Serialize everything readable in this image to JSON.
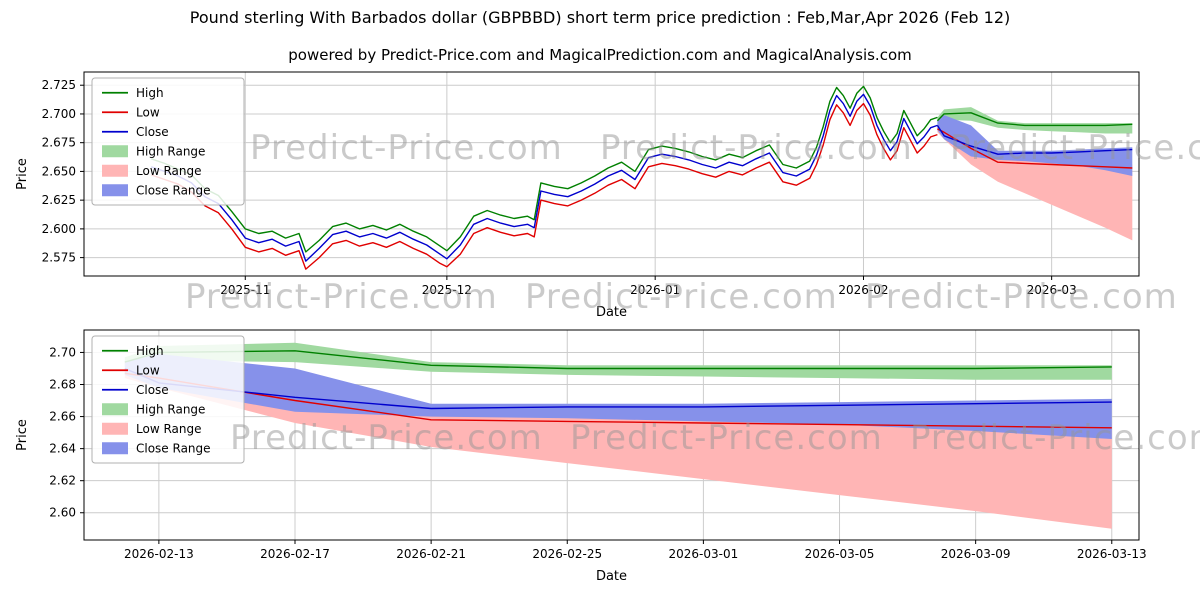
{
  "figure": {
    "title": "Pound sterling With Barbados dollar (GBPBBD) short term price prediction : Feb,Mar,Apr 2026 (Feb 12)",
    "subtitle": "powered by Predict-Price.com and MagicalPrediction.com and MagicalAnalysis.com",
    "watermark_text": "Predict-Price.com",
    "colors": {
      "high": "#008000",
      "low": "#e00000",
      "close": "#0000cd",
      "high_range": "#a0d9a0",
      "low_range": "#ffb5b5",
      "close_range": "#8691ea",
      "grid": "#cccccc",
      "axis": "#000000",
      "watermark": "#969696"
    }
  },
  "chart_data": [
    {
      "type": "line",
      "name": "price-history-and-forecast-chart",
      "xlabel": "Date",
      "ylabel": "Price",
      "ylim": [
        2.559,
        2.7365
      ],
      "yticks": [
        2.575,
        2.6,
        2.625,
        2.65,
        2.675,
        2.7,
        2.725
      ],
      "ytick_decimals": 3,
      "xlim": [
        0,
        157
      ],
      "xticks": [
        {
          "pos": 24,
          "label": "2025-11"
        },
        {
          "pos": 54,
          "label": "2025-12"
        },
        {
          "pos": 85,
          "label": "2026-01"
        },
        {
          "pos": 116,
          "label": "2026-02"
        },
        {
          "pos": 144,
          "label": "2026-03"
        }
      ],
      "legend": [
        {
          "label": "High",
          "type": "line",
          "color_key": "high"
        },
        {
          "label": "Low",
          "type": "line",
          "color_key": "low"
        },
        {
          "label": "Close",
          "type": "line",
          "color_key": "close"
        },
        {
          "label": "High Range",
          "type": "patch",
          "color_key": "high_range"
        },
        {
          "label": "Low Range",
          "type": "patch",
          "color_key": "low_range"
        },
        {
          "label": "Close Range",
          "type": "patch",
          "color_key": "close_range"
        }
      ],
      "historical": {
        "x": [
          10,
          12,
          14,
          16,
          18,
          20,
          22,
          24,
          26,
          28,
          30,
          32,
          33,
          35,
          37,
          39,
          41,
          43,
          45,
          47,
          49,
          51,
          53,
          54,
          56,
          58,
          60,
          62,
          64,
          66,
          67,
          68,
          70,
          72,
          74,
          76,
          78,
          80,
          82,
          84,
          86,
          88,
          90,
          92,
          94,
          96,
          98,
          100,
          102,
          104,
          106,
          108,
          109,
          110,
          111,
          112,
          113,
          114,
          115,
          116,
          117,
          118,
          119,
          120,
          121,
          122,
          123,
          124,
          125,
          126,
          127
        ],
        "high": [
          2.661,
          2.657,
          2.652,
          2.647,
          2.635,
          2.629,
          2.615,
          2.6,
          2.596,
          2.598,
          2.592,
          2.596,
          2.58,
          2.59,
          2.602,
          2.605,
          2.6,
          2.603,
          2.599,
          2.604,
          2.598,
          2.593,
          2.585,
          2.581,
          2.593,
          2.611,
          2.616,
          2.612,
          2.609,
          2.611,
          2.608,
          2.64,
          2.637,
          2.635,
          2.64,
          2.646,
          2.653,
          2.658,
          2.65,
          2.669,
          2.672,
          2.67,
          2.667,
          2.663,
          2.66,
          2.665,
          2.662,
          2.668,
          2.673,
          2.656,
          2.653,
          2.659,
          2.671,
          2.689,
          2.711,
          2.723,
          2.716,
          2.705,
          2.718,
          2.724,
          2.714,
          2.697,
          2.685,
          2.675,
          2.683,
          2.703,
          2.692,
          2.681,
          2.687,
          2.695,
          2.697
        ],
        "low": [
          2.647,
          2.643,
          2.639,
          2.632,
          2.62,
          2.614,
          2.6,
          2.584,
          2.58,
          2.583,
          2.577,
          2.581,
          2.565,
          2.575,
          2.587,
          2.59,
          2.585,
          2.588,
          2.584,
          2.589,
          2.583,
          2.578,
          2.57,
          2.567,
          2.578,
          2.596,
          2.601,
          2.597,
          2.594,
          2.596,
          2.593,
          2.625,
          2.622,
          2.62,
          2.625,
          2.631,
          2.638,
          2.643,
          2.635,
          2.654,
          2.657,
          2.655,
          2.652,
          2.648,
          2.645,
          2.65,
          2.647,
          2.653,
          2.658,
          2.641,
          2.638,
          2.644,
          2.656,
          2.673,
          2.695,
          2.708,
          2.701,
          2.69,
          2.703,
          2.709,
          2.699,
          2.682,
          2.67,
          2.66,
          2.668,
          2.688,
          2.677,
          2.666,
          2.672,
          2.68,
          2.682
        ],
        "close": [
          2.654,
          2.65,
          2.646,
          2.64,
          2.628,
          2.622,
          2.608,
          2.592,
          2.588,
          2.591,
          2.585,
          2.589,
          2.572,
          2.583,
          2.595,
          2.598,
          2.593,
          2.596,
          2.592,
          2.597,
          2.591,
          2.586,
          2.578,
          2.574,
          2.586,
          2.604,
          2.609,
          2.605,
          2.602,
          2.604,
          2.601,
          2.633,
          2.63,
          2.628,
          2.633,
          2.639,
          2.646,
          2.651,
          2.643,
          2.662,
          2.665,
          2.663,
          2.66,
          2.656,
          2.653,
          2.658,
          2.655,
          2.661,
          2.666,
          2.649,
          2.646,
          2.652,
          2.664,
          2.681,
          2.703,
          2.716,
          2.709,
          2.698,
          2.711,
          2.717,
          2.707,
          2.69,
          2.678,
          2.668,
          2.676,
          2.696,
          2.685,
          2.674,
          2.68,
          2.688,
          2.69
        ]
      },
      "forecast": {
        "x": [
          127,
          128,
          132,
          136,
          140,
          144,
          148,
          152,
          156
        ],
        "high": [
          2.694,
          2.7,
          2.701,
          2.692,
          2.69,
          2.69,
          2.69,
          2.69,
          2.691
        ],
        "low": [
          2.687,
          2.684,
          2.67,
          2.658,
          2.657,
          2.656,
          2.655,
          2.654,
          2.653
        ],
        "close": [
          2.69,
          2.681,
          2.672,
          2.665,
          2.666,
          2.666,
          2.667,
          2.668,
          2.669
        ],
        "high_range": {
          "upper": [
            2.697,
            2.704,
            2.706,
            2.694,
            2.692,
            2.692,
            2.692,
            2.692,
            2.692
          ],
          "lower": [
            2.691,
            2.695,
            2.694,
            2.688,
            2.686,
            2.685,
            2.684,
            2.683,
            2.683
          ]
        },
        "close_range": {
          "upper": [
            2.694,
            2.699,
            2.69,
            2.668,
            2.668,
            2.668,
            2.669,
            2.67,
            2.671
          ],
          "lower": [
            2.686,
            2.678,
            2.663,
            2.66,
            2.659,
            2.657,
            2.655,
            2.651,
            2.646
          ]
        },
        "low_range": {
          "upper": [
            2.69,
            2.69,
            2.678,
            2.661,
            2.66,
            2.659,
            2.658,
            2.657,
            2.656
          ],
          "lower": [
            2.684,
            2.678,
            2.656,
            2.641,
            2.631,
            2.621,
            2.611,
            2.601,
            2.59
          ]
        }
      }
    },
    {
      "type": "line",
      "name": "forecast-detail-chart",
      "xlabel": "Date",
      "ylabel": "Price",
      "ylim": [
        2.583,
        2.714
      ],
      "yticks": [
        2.6,
        2.62,
        2.64,
        2.66,
        2.68,
        2.7
      ],
      "ytick_decimals": 2,
      "xlim": [
        125.8,
        156.8
      ],
      "xticks": [
        {
          "pos": 128,
          "label": "2026-02-13"
        },
        {
          "pos": 132,
          "label": "2026-02-17"
        },
        {
          "pos": 136,
          "label": "2026-02-21"
        },
        {
          "pos": 140,
          "label": "2026-02-25"
        },
        {
          "pos": 144,
          "label": "2026-03-01"
        },
        {
          "pos": 148,
          "label": "2026-03-05"
        },
        {
          "pos": 152,
          "label": "2026-03-09"
        },
        {
          "pos": 156,
          "label": "2026-03-13"
        }
      ],
      "legend": [
        {
          "label": "High",
          "type": "line",
          "color_key": "high"
        },
        {
          "label": "Low",
          "type": "line",
          "color_key": "low"
        },
        {
          "label": "Close",
          "type": "line",
          "color_key": "close"
        },
        {
          "label": "High Range",
          "type": "patch",
          "color_key": "high_range"
        },
        {
          "label": "Low Range",
          "type": "patch",
          "color_key": "low_range"
        },
        {
          "label": "Close Range",
          "type": "patch",
          "color_key": "close_range"
        }
      ],
      "forecast": {
        "x": [
          127,
          128,
          132,
          136,
          140,
          144,
          148,
          152,
          156
        ],
        "high": [
          2.694,
          2.7,
          2.701,
          2.692,
          2.69,
          2.69,
          2.69,
          2.69,
          2.691
        ],
        "low": [
          2.687,
          2.684,
          2.67,
          2.658,
          2.657,
          2.656,
          2.655,
          2.654,
          2.653
        ],
        "close": [
          2.69,
          2.681,
          2.672,
          2.665,
          2.666,
          2.666,
          2.667,
          2.668,
          2.669
        ],
        "high_range": {
          "upper": [
            2.697,
            2.704,
            2.706,
            2.694,
            2.692,
            2.692,
            2.692,
            2.692,
            2.692
          ],
          "lower": [
            2.691,
            2.695,
            2.694,
            2.688,
            2.686,
            2.685,
            2.684,
            2.683,
            2.683
          ]
        },
        "close_range": {
          "upper": [
            2.694,
            2.699,
            2.69,
            2.668,
            2.668,
            2.668,
            2.669,
            2.67,
            2.671
          ],
          "lower": [
            2.686,
            2.678,
            2.663,
            2.66,
            2.659,
            2.657,
            2.655,
            2.651,
            2.646
          ]
        },
        "low_range": {
          "upper": [
            2.69,
            2.69,
            2.678,
            2.661,
            2.66,
            2.659,
            2.658,
            2.657,
            2.656
          ],
          "lower": [
            2.684,
            2.678,
            2.656,
            2.641,
            2.631,
            2.621,
            2.611,
            2.601,
            2.59
          ]
        }
      }
    }
  ]
}
